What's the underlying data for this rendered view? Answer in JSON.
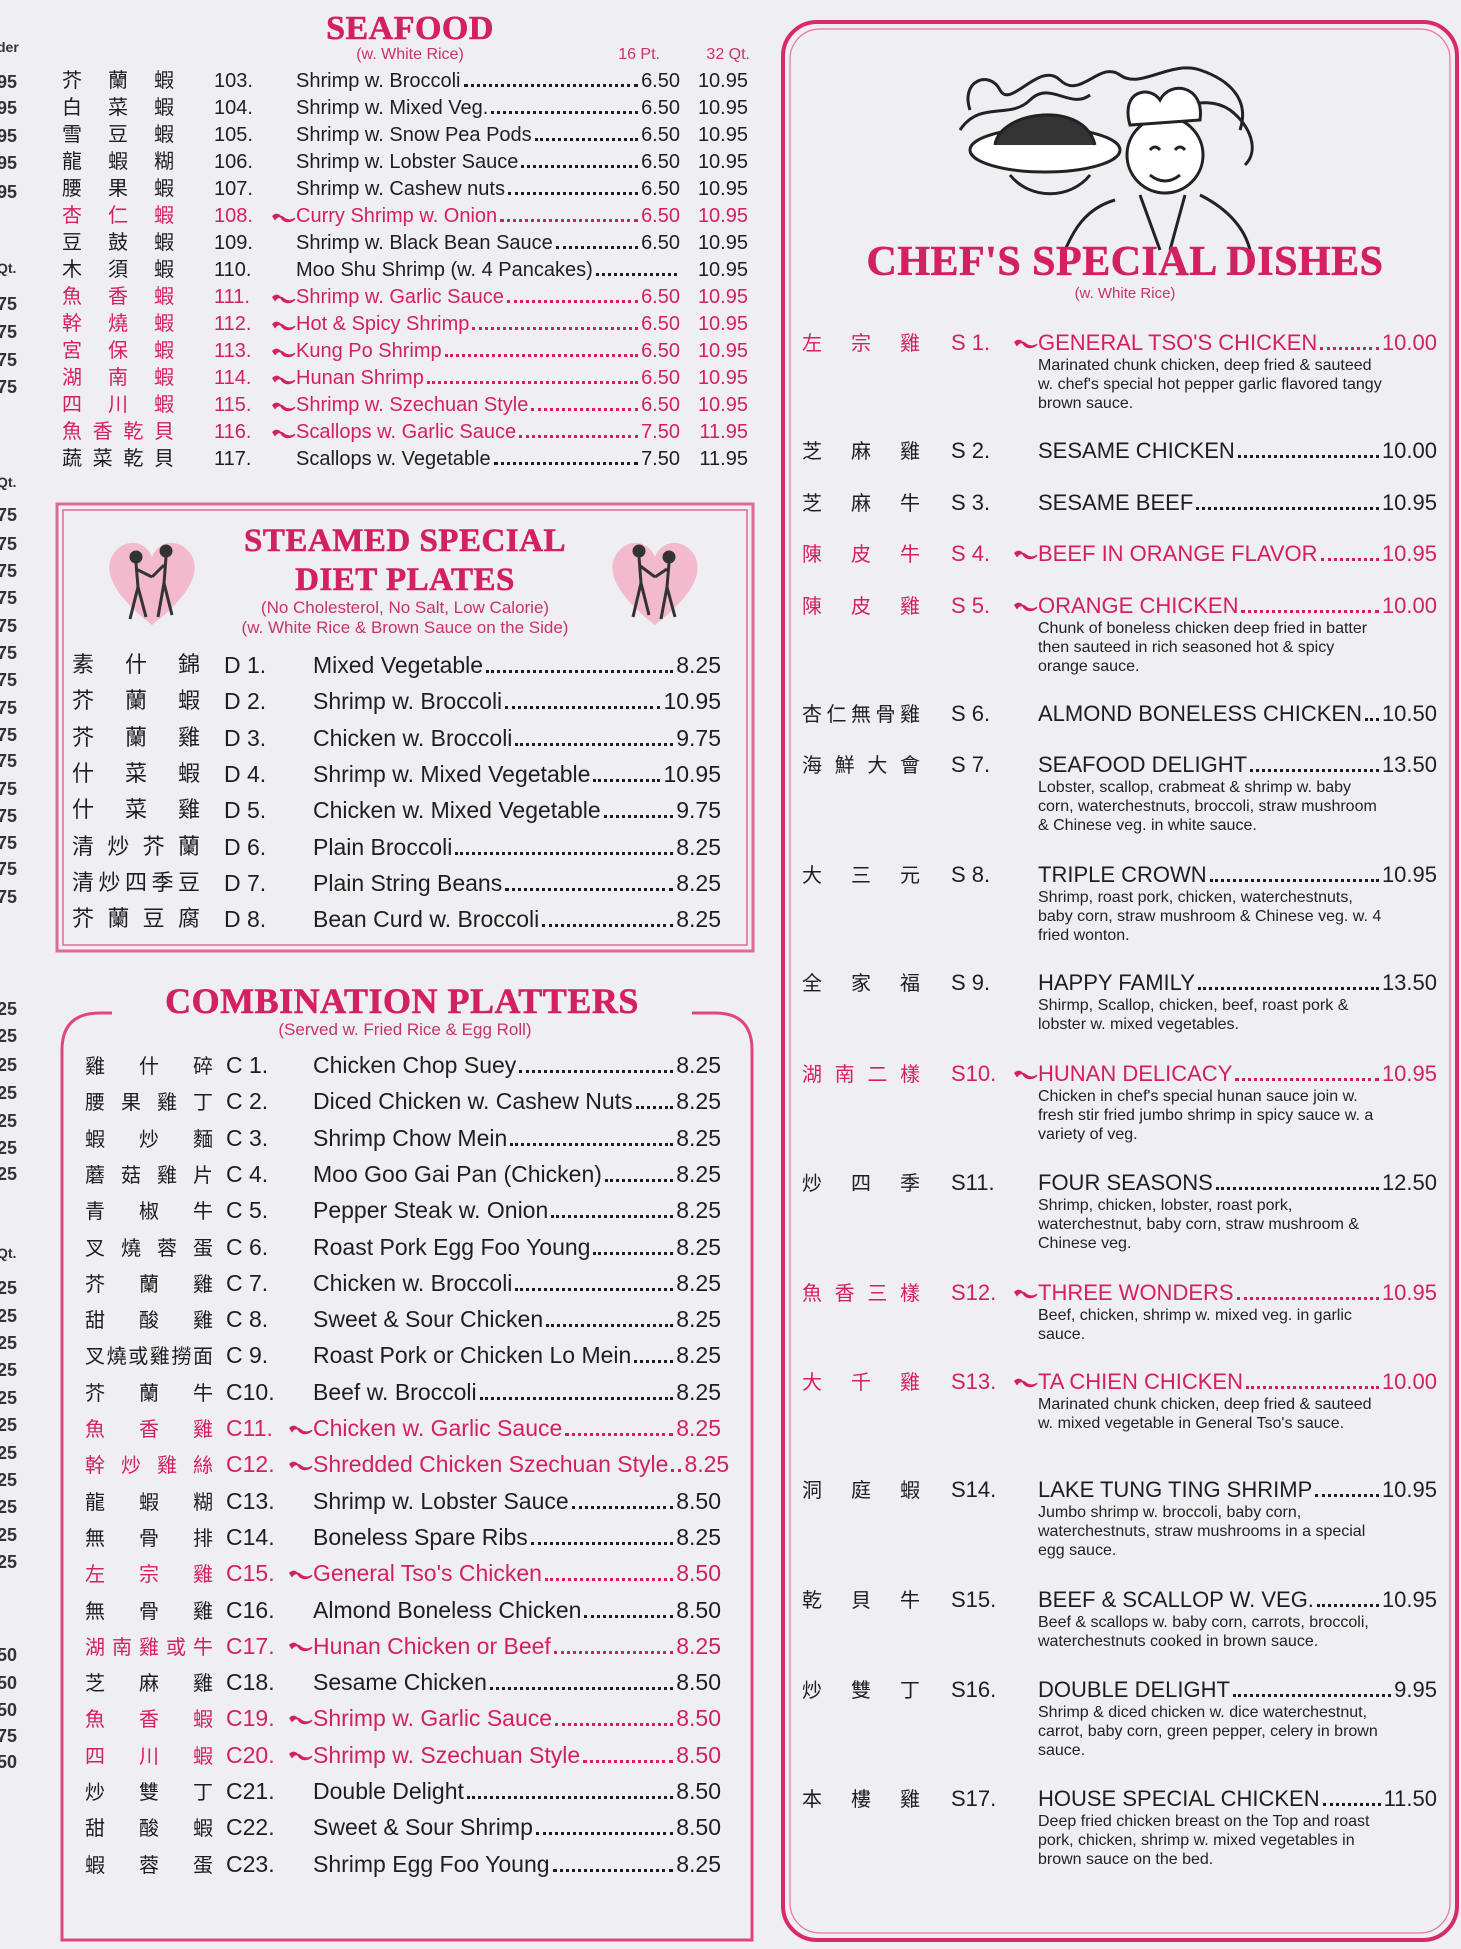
{
  "edge_fragments": [
    "der",
    "95",
    "95",
    "95",
    "95",
    "95",
    "Qt.",
    "75",
    "75",
    "75",
    "75",
    "Qt.",
    "75",
    "75",
    "75",
    "75",
    "75",
    "75",
    "75",
    "75",
    "75",
    "75",
    "75",
    "75",
    "75",
    "75",
    "75",
    "25",
    "25",
    "25",
    "25",
    "25",
    "25",
    "25",
    "Qt.",
    "25",
    "25",
    "25",
    "25",
    "25",
    "25",
    "25",
    "25",
    "25",
    "25",
    "25",
    "50",
    "50",
    "50",
    "75",
    "50"
  ],
  "seafood": {
    "title": "SEAFOOD",
    "subtitle": "(w. White Rice)",
    "col_pt": "16 Pt.",
    "col_qt": "32 Qt.",
    "items": [
      {
        "zh": "芥 蘭 蝦",
        "no": "103.",
        "name": "Shrimp w. Broccoli",
        "pt": "6.50",
        "qt": "10.95"
      },
      {
        "zh": "白 菜 蝦",
        "no": "104.",
        "name": "Shrimp w. Mixed Veg.",
        "pt": "6.50",
        "qt": "10.95"
      },
      {
        "zh": "雪 豆 蝦",
        "no": "105.",
        "name": "Shrimp w. Snow Pea Pods",
        "pt": "6.50",
        "qt": "10.95"
      },
      {
        "zh": "龍 蝦 糊",
        "no": "106.",
        "name": "Shrimp w. Lobster Sauce",
        "pt": "6.50",
        "qt": "10.95"
      },
      {
        "zh": "腰 果 蝦",
        "no": "107.",
        "name": "Shrimp w. Cashew nuts",
        "pt": "6.50",
        "qt": "10.95"
      },
      {
        "zh": "杏 仁 蝦",
        "no": "108.",
        "name": "Curry Shrimp w. Onion",
        "pt": "6.50",
        "qt": "10.95",
        "spicy": true
      },
      {
        "zh": "豆 鼓 蝦",
        "no": "109.",
        "name": "Shrimp w. Black Bean Sauce",
        "pt": "6.50",
        "qt": "10.95"
      },
      {
        "zh": "木 須 蝦",
        "no": "110.",
        "name": "Moo Shu Shrimp (w. 4 Pancakes)",
        "qt": "10.95"
      },
      {
        "zh": "魚 香 蝦",
        "no": "111.",
        "name": "Shrimp w. Garlic Sauce",
        "pt": "6.50",
        "qt": "10.95",
        "spicy": true
      },
      {
        "zh": "幹 燒 蝦",
        "no": "112.",
        "name": "Hot & Spicy Shrimp",
        "pt": "6.50",
        "qt": "10.95",
        "spicy": true
      },
      {
        "zh": "宮 保 蝦",
        "no": "113.",
        "name": "Kung Po Shrimp",
        "pt": "6.50",
        "qt": "10.95",
        "spicy": true
      },
      {
        "zh": "湖 南 蝦",
        "no": "114.",
        "name": "Hunan Shrimp",
        "pt": "6.50",
        "qt": "10.95",
        "spicy": true
      },
      {
        "zh": "四 川 蝦",
        "no": "115.",
        "name": "Shrimp w. Szechuan Style",
        "pt": "6.50",
        "qt": "10.95",
        "spicy": true
      },
      {
        "zh": "魚 香 乾 貝",
        "no": "116.",
        "name": "Scallops w. Garlic Sauce",
        "pt": "7.50",
        "qt": "11.95",
        "spicy": true
      },
      {
        "zh": "蔬 菜 乾 貝",
        "no": "117.",
        "name": "Scallops w. Vegetable",
        "pt": "7.50",
        "qt": "11.95"
      }
    ]
  },
  "steamed": {
    "title_lines": [
      "STEAMED SPECIAL",
      "DIET PLATES"
    ],
    "notes": [
      "(No Cholesterol, No Salt, Low Calorie)",
      "(w. White Rice & Brown Sauce on the Side)"
    ],
    "items": [
      {
        "zh": "素 什 錦",
        "no": "D 1.",
        "name": "Mixed  Vegetable",
        "price": "8.25"
      },
      {
        "zh": "芥 蘭 蝦",
        "no": "D 2.",
        "name": "Shrimp w. Broccoli",
        "price": "10.95"
      },
      {
        "zh": "芥 蘭 雞",
        "no": "D 3.",
        "name": "Chicken w. Broccoli",
        "price": "9.75"
      },
      {
        "zh": "什 菜 蝦",
        "no": "D 4.",
        "name": "Shrimp w. Mixed Vegetable",
        "price": "10.95"
      },
      {
        "zh": "什 菜 雞",
        "no": "D 5.",
        "name": "Chicken w. Mixed Vegetable",
        "price": "9.75"
      },
      {
        "zh": "清 炒 芥 蘭",
        "no": "D 6.",
        "name": "Plain Broccoli",
        "price": "8.25"
      },
      {
        "zh": "清炒四季豆",
        "no": "D 7.",
        "name": "Plain String Beans",
        "price": "8.25"
      },
      {
        "zh": "芥 蘭 豆 腐",
        "no": "D 8.",
        "name": "Bean Curd w. Broccoli",
        "price": "8.25"
      }
    ]
  },
  "combination": {
    "title": "COMBINATION PLATTERS",
    "subtitle": "(Served w.  Fried Rice & Egg Roll)",
    "items": [
      {
        "zh": "雞 什 碎",
        "no": "C 1.",
        "name": "Chicken Chop Suey",
        "price": "8.25"
      },
      {
        "zh": "腰 果 雞 丁",
        "no": "C 2.",
        "name": "Diced Chicken w. Cashew Nuts",
        "price": "8.25"
      },
      {
        "zh": "蝦 炒 麵",
        "no": "C 3.",
        "name": "Shrimp Chow Mein",
        "price": "8.25"
      },
      {
        "zh": "蘑 菇 雞 片",
        "no": "C 4.",
        "name": "Moo Goo Gai Pan (Chicken)",
        "price": "8.25"
      },
      {
        "zh": "青 椒 牛",
        "no": "C 5.",
        "name": "Pepper Steak w. Onion",
        "price": "8.25"
      },
      {
        "zh": "叉 燒 蓉 蛋",
        "no": "C 6.",
        "name": "Roast Pork Egg Foo Young",
        "price": "8.25"
      },
      {
        "zh": "芥 蘭 雞",
        "no": "C 7.",
        "name": "Chicken w. Broccoli",
        "price": "8.25"
      },
      {
        "zh": "甜 酸 雞",
        "no": "C 8.",
        "name": "Sweet & Sour Chicken",
        "price": "8.25"
      },
      {
        "zh": "叉燒或雞撈面",
        "no": "C 9.",
        "name": "Roast Pork or Chicken Lo Mein",
        "price": "8.25"
      },
      {
        "zh": "芥 蘭 牛",
        "no": "C10.",
        "name": "Beef w. Broccoli",
        "price": "8.25"
      },
      {
        "zh": "魚 香 雞",
        "no": "C11.",
        "name": "Chicken w. Garlic Sauce",
        "price": "8.25",
        "spicy": true
      },
      {
        "zh": "幹 炒 雞 絲",
        "no": "C12.",
        "name": "Shredded Chicken Szechuan Style",
        "price": "8.25",
        "spicy": true
      },
      {
        "zh": "龍 蝦 糊",
        "no": "C13.",
        "name": "Shrimp w. Lobster Sauce",
        "price": "8.50"
      },
      {
        "zh": "無 骨 排",
        "no": "C14.",
        "name": "Boneless Spare Ribs",
        "price": "8.25"
      },
      {
        "zh": "左 宗 雞",
        "no": "C15.",
        "name": "General Tso's Chicken",
        "price": "8.50",
        "spicy": true
      },
      {
        "zh": "無 骨 雞",
        "no": "C16.",
        "name": "Almond Boneless Chicken",
        "price": "8.50"
      },
      {
        "zh": "湖南雞或牛",
        "no": "C17.",
        "name": "Hunan Chicken or Beef",
        "price": "8.25",
        "spicy": true
      },
      {
        "zh": "芝 麻 雞",
        "no": "C18.",
        "name": "Sesame Chicken",
        "price": "8.50"
      },
      {
        "zh": "魚 香 蝦",
        "no": "C19.",
        "name": "Shrimp w. Garlic Sauce",
        "price": "8.50",
        "spicy": true
      },
      {
        "zh": "四 川 蝦",
        "no": "C20.",
        "name": "Shrimp w. Szechuan Style",
        "price": "8.50",
        "spicy": true
      },
      {
        "zh": "炒 雙 丁",
        "no": "C21.",
        "name": "Double Delight",
        "price": "8.50"
      },
      {
        "zh": "甜 酸 蝦",
        "no": "C22.",
        "name": "Sweet & Sour Shrimp",
        "price": "8.50"
      },
      {
        "zh": "蝦 蓉 蛋",
        "no": "C23.",
        "name": "Shrimp Egg Foo Young",
        "price": "8.25"
      }
    ]
  },
  "chef": {
    "title": "CHEF'S SPECIAL DISHES",
    "subtitle": "(w. White Rice)",
    "items": [
      {
        "zh": "左 宗 雞",
        "no": "S 1.",
        "name": "GENERAL TSO'S CHICKEN",
        "price": "10.00",
        "spicy": true,
        "desc": "Marinated chunk chicken, deep fried & sauteed w. chef's special hot pepper garlic flavored tangy brown sauce."
      },
      {
        "zh": "芝 麻 雞",
        "no": "S 2.",
        "name": "SESAME CHICKEN",
        "price": "10.00"
      },
      {
        "zh": "芝 麻 牛",
        "no": "S 3.",
        "name": "SESAME BEEF",
        "price": "10.95"
      },
      {
        "zh": "陳 皮 牛",
        "no": "S 4.",
        "name": "BEEF IN ORANGE FLAVOR",
        "price": "10.95",
        "spicy": true
      },
      {
        "zh": "陳 皮 雞",
        "no": "S 5.",
        "name": "ORANGE CHICKEN",
        "price": "10.00",
        "spicy": true,
        "desc": "Chunk of boneless chicken deep fried in batter then sauteed in rich seasoned hot & spicy orange sauce."
      },
      {
        "zh": "杏仁無骨雞",
        "no": "S 6.",
        "name": "ALMOND BONELESS CHICKEN",
        "price": "10.50"
      },
      {
        "zh": "海鮮大會",
        "no": "S 7.",
        "name": "SEAFOOD DELIGHT",
        "price": "13.50",
        "desc": "Lobster, scallop, crabmeat & shrimp w. baby corn, waterchestnuts, broccoli, straw mushroom & Chinese veg. in white sauce."
      },
      {
        "zh": "大 三 元",
        "no": "S 8.",
        "name": "TRIPLE CROWN",
        "price": "10.95",
        "desc": "Shrimp, roast pork, chicken, waterchestnuts, baby corn, straw mushroom & Chinese veg. w. 4 fried wonton."
      },
      {
        "zh": "全 家 福",
        "no": "S 9.",
        "name": "HAPPY FAMILY",
        "price": "13.50",
        "desc": "Shirmp, Scallop, chicken, beef, roast pork & lobster w. mixed vegetables."
      },
      {
        "zh": "湖南二樣",
        "no": "S10.",
        "name": "HUNAN DELICACY",
        "price": "10.95",
        "spicy": true,
        "desc": "Chicken in chef's special hunan sauce join w. fresh stir fried jumbo shrimp in spicy sauce w. a variety of veg."
      },
      {
        "zh": "炒 四 季",
        "no": "S11.",
        "name": "FOUR SEASONS",
        "price": "12.50",
        "desc": "Shrimp, chicken, lobster, roast pork, waterchestnut, baby corn, straw mushroom & Chinese veg."
      },
      {
        "zh": "魚香三樣",
        "no": "S12.",
        "name": "THREE WONDERS",
        "price": "10.95",
        "spicy": true,
        "desc": "Beef, chicken, shrimp w. mixed veg. in garlic sauce."
      },
      {
        "zh": "大 千 雞",
        "no": "S13.",
        "name": "TA CHIEN CHICKEN",
        "price": "10.00",
        "spicy": true,
        "desc": "Marinated chunk chicken, deep fried & sauteed w. mixed vegetable in General Tso's sauce."
      },
      {
        "zh": "洞 庭 蝦",
        "no": "S14.",
        "name": "LAKE TUNG TING SHRIMP",
        "price": "10.95",
        "desc": "Jumbo shrimp w. broccoli, baby corn, waterchestnuts, straw mushrooms in a special egg sauce."
      },
      {
        "zh": "乾 貝 牛",
        "no": "S15.",
        "name": "BEEF & SCALLOP W. VEG.",
        "price": "10.95",
        "desc": "Beef & scallops w. baby corn, carrots, broccoli, waterchestnuts cooked in brown sauce."
      },
      {
        "zh": "炒 雙 丁",
        "no": "S16.",
        "name": "DOUBLE DELIGHT",
        "price": "9.95",
        "desc": "Shrimp & diced chicken w. dice waterchestnut, carrot, baby corn, green pepper, celery in brown sauce."
      },
      {
        "zh": "本 樓 雞",
        "no": "S17.",
        "name": "HOUSE SPECIAL CHICKEN",
        "price": "11.50",
        "desc": "Deep fried  chicken breast on the Top and roast pork, chicken, shrimp w. mixed vegetables in brown sauce on the bed."
      }
    ]
  }
}
